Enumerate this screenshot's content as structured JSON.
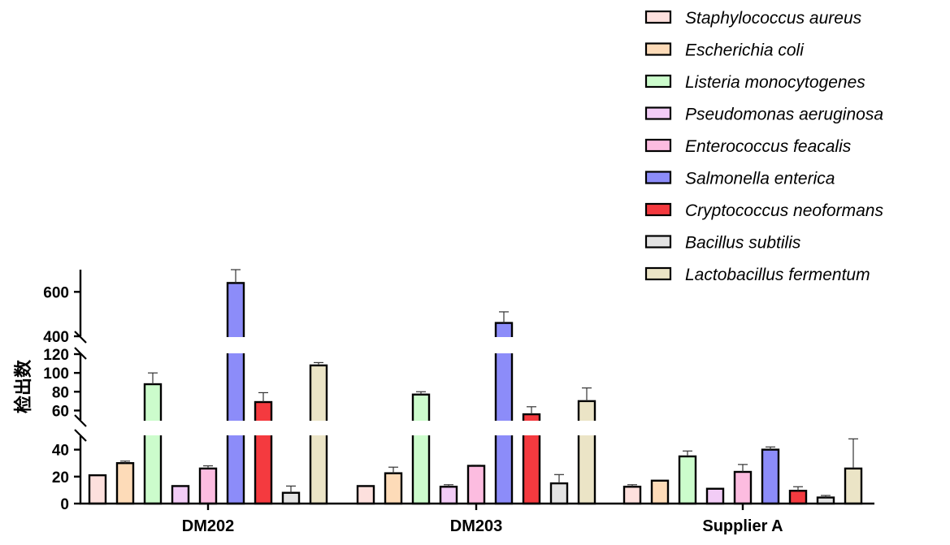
{
  "chart_data": {
    "type": "bar",
    "ylabel": "检出数",
    "categories": [
      "DM202",
      "DM203",
      "Supplier A"
    ],
    "y_axis": {
      "broken": true,
      "segments": [
        {
          "range": [
            0,
            50
          ],
          "ticks": [
            0,
            20,
            40
          ]
        },
        {
          "range": [
            50,
            120
          ],
          "ticks": [
            60,
            80,
            100,
            120
          ]
        },
        {
          "range": [
            400,
            700
          ],
          "ticks": [
            400,
            600
          ]
        }
      ]
    },
    "grid": false,
    "legend_position": "top-right",
    "error_bars": true,
    "series": [
      {
        "name": "Staphylococcus aureus",
        "color": "#fde0dd",
        "values": [
          21,
          13,
          12.5
        ],
        "errors": [
          0,
          0,
          1.5
        ]
      },
      {
        "name": "Escherichia coli",
        "color": "#fddbb8",
        "values": [
          30,
          22.5,
          17
        ],
        "errors": [
          1.5,
          4.5,
          0
        ]
      },
      {
        "name": "Listeria monocytogenes",
        "color": "#ccfccc",
        "values": [
          88,
          77,
          35
        ],
        "errors": [
          12,
          3,
          4
        ]
      },
      {
        "name": "Pseudomonas aeruginosa",
        "color": "#f2ccf6",
        "values": [
          13,
          12.5,
          11
        ],
        "errors": [
          0,
          1.5,
          0
        ]
      },
      {
        "name": "Enterococcus feacalis",
        "color": "#fcbce0",
        "values": [
          26,
          28,
          23.5
        ],
        "errors": [
          2,
          0.5,
          5.5
        ]
      },
      {
        "name": "Salmonella enterica",
        "color": "#8c8cf9",
        "values": [
          640,
          460,
          40
        ],
        "errors": [
          60,
          50,
          2
        ]
      },
      {
        "name": "Cryptococcus neoformans",
        "color": "#f43a3f",
        "values": [
          69,
          56,
          9.5
        ],
        "errors": [
          10,
          8,
          3
        ]
      },
      {
        "name": "Bacillus subtilis",
        "color": "#e3e3e3",
        "values": [
          8,
          15,
          4.5
        ],
        "errors": [
          5,
          6.5,
          1.5
        ]
      },
      {
        "name": "Lactobacillus fermentum",
        "color": "#ebe4c6",
        "values": [
          108,
          70,
          26
        ],
        "errors": [
          3,
          14,
          22
        ]
      }
    ]
  }
}
